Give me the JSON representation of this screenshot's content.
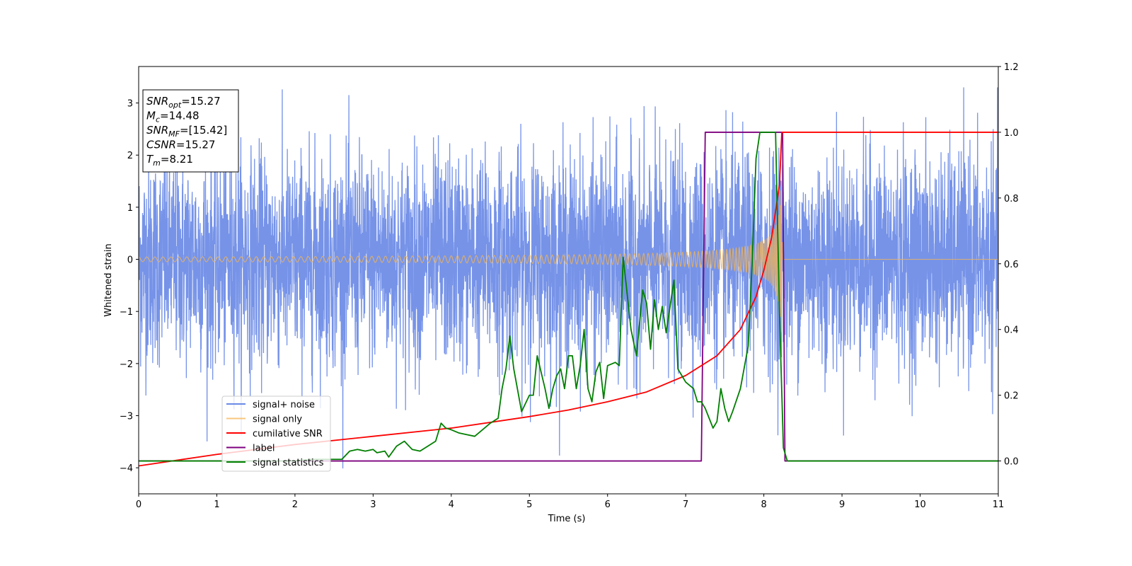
{
  "chart_data": {
    "type": "line",
    "xlabel": "Time (s)",
    "ylabel": "Whitened strain",
    "xlim": [
      0,
      11
    ],
    "ylim_left": [
      -4.5,
      3.7
    ],
    "ylim_right": [
      -0.1,
      1.2
    ],
    "x_ticks": [
      0,
      1,
      2,
      3,
      4,
      5,
      6,
      7,
      8,
      9,
      10,
      11
    ],
    "x_tick_labels": [
      "0",
      "1",
      "2",
      "3",
      "4",
      "5",
      "6",
      "7",
      "8",
      "9",
      "10",
      "11"
    ],
    "y_left_ticks": [
      -4,
      -3,
      -2,
      -1,
      0,
      1,
      2,
      3
    ],
    "y_left_tick_labels": [
      "−4",
      "−3",
      "−2",
      "−1",
      "0",
      "1",
      "2",
      "3"
    ],
    "y_right_ticks": [
      0.0,
      0.2,
      0.4,
      0.6,
      0.8,
      1.0,
      1.2
    ],
    "y_right_tick_labels": [
      "0.0",
      "0.2",
      "0.4",
      "0.6",
      "0.8",
      "1.0",
      "1.2"
    ],
    "grid": false,
    "legend_placement": "lower-left",
    "info_box": {
      "lines": [
        {
          "main": "SNR",
          "sub": "opt",
          "value": "=15.27"
        },
        {
          "main": "M",
          "sub": "c",
          "value": "=14.48"
        },
        {
          "main": "SNR",
          "sub": "MF",
          "value": "=[15.42]"
        },
        {
          "main": "CSNR",
          "sub": "",
          "value": "=15.27"
        },
        {
          "main": "T",
          "sub": "m",
          "value": "=8.21"
        }
      ]
    },
    "noise_params": {
      "amplitude_std": 1.0,
      "merger_time": 8.21,
      "signal_end": 8.24
    },
    "series": [
      {
        "name": "signal+ noise",
        "axis": "left",
        "color": "#6a8ae6",
        "x_range": [
          0,
          11
        ],
        "description_values": "noisy whitened strain, roughly within -3.9 to 3.3"
      },
      {
        "name": "signal only",
        "axis": "left",
        "color": "#f5b451",
        "chirp": {
          "t_start": 0,
          "t_merge": 8.21,
          "t_end": 8.24,
          "amp_start": 0.04,
          "amp_peak": 3.0
        }
      },
      {
        "name": "cumilative SNR",
        "axis": "right",
        "color": "#ff0000",
        "x": [
          0,
          1,
          2,
          3,
          4,
          5,
          5.5,
          6,
          6.5,
          7,
          7.4,
          7.7,
          7.9,
          8.0,
          8.1,
          8.2,
          8.23,
          11
        ],
        "y": [
          -0.015,
          0.02,
          0.05,
          0.075,
          0.1,
          0.135,
          0.155,
          0.18,
          0.21,
          0.26,
          0.32,
          0.4,
          0.5,
          0.58,
          0.68,
          0.84,
          1.0,
          1.0
        ]
      },
      {
        "name": "label",
        "axis": "right",
        "color": "#7f007f",
        "x": [
          0,
          7.2,
          7.25,
          8.24,
          8.27,
          11
        ],
        "y": [
          0.0,
          0.0,
          1.0,
          1.0,
          0.0,
          0.0
        ]
      },
      {
        "name": "signal statistics",
        "axis": "right",
        "color": "#007f00",
        "x": [
          0,
          2.0,
          2.2,
          2.4,
          2.6,
          2.7,
          2.8,
          2.9,
          3.0,
          3.05,
          3.15,
          3.2,
          3.3,
          3.4,
          3.5,
          3.6,
          3.7,
          3.8,
          3.87,
          3.93,
          4.0,
          4.1,
          4.2,
          4.3,
          4.4,
          4.5,
          4.6,
          4.65,
          4.7,
          4.75,
          4.8,
          4.9,
          5.0,
          5.05,
          5.1,
          5.2,
          5.25,
          5.3,
          5.35,
          5.4,
          5.45,
          5.5,
          5.55,
          5.6,
          5.65,
          5.7,
          5.75,
          5.8,
          5.85,
          5.9,
          5.95,
          6.0,
          6.1,
          6.15,
          6.2,
          6.3,
          6.37,
          6.45,
          6.5,
          6.55,
          6.6,
          6.65,
          6.7,
          6.75,
          6.8,
          6.85,
          6.9,
          6.95,
          7.0,
          7.1,
          7.15,
          7.2,
          7.25,
          7.3,
          7.35,
          7.4,
          7.45,
          7.5,
          7.55,
          7.6,
          7.7,
          7.8,
          7.85,
          7.9,
          7.95,
          8.0,
          8.1,
          8.15,
          8.2,
          8.25,
          8.3,
          8.4,
          11
        ],
        "y": [
          0.0,
          0.0,
          0.005,
          0.005,
          0.005,
          0.03,
          0.035,
          0.03,
          0.035,
          0.025,
          0.03,
          0.012,
          0.045,
          0.06,
          0.035,
          0.03,
          0.045,
          0.06,
          0.115,
          0.1,
          0.095,
          0.085,
          0.08,
          0.075,
          0.095,
          0.115,
          0.13,
          0.22,
          0.28,
          0.38,
          0.28,
          0.15,
          0.2,
          0.2,
          0.32,
          0.22,
          0.16,
          0.22,
          0.26,
          0.28,
          0.22,
          0.32,
          0.32,
          0.22,
          0.29,
          0.4,
          0.22,
          0.18,
          0.27,
          0.3,
          0.19,
          0.29,
          0.3,
          0.29,
          0.62,
          0.4,
          0.32,
          0.52,
          0.48,
          0.34,
          0.49,
          0.4,
          0.47,
          0.39,
          0.47,
          0.55,
          0.28,
          0.26,
          0.24,
          0.22,
          0.18,
          0.18,
          0.16,
          0.13,
          0.1,
          0.12,
          0.22,
          0.16,
          0.12,
          0.15,
          0.22,
          0.35,
          0.6,
          0.92,
          1.0,
          1.0,
          1.0,
          1.0,
          0.45,
          0.04,
          0.0,
          0.0,
          0.0
        ]
      }
    ]
  }
}
